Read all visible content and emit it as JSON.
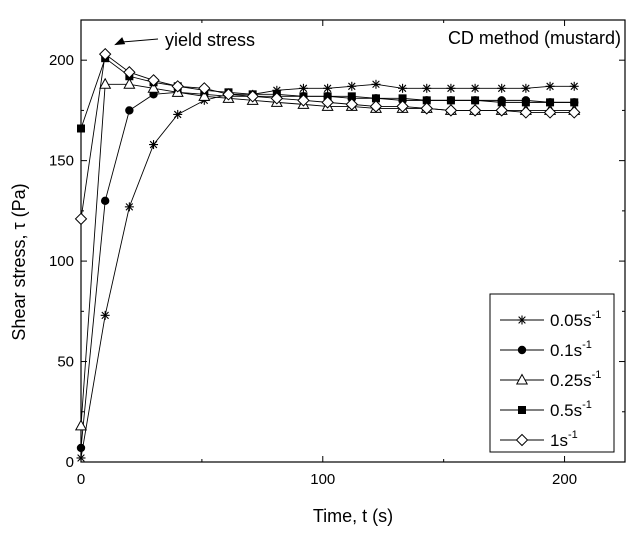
{
  "chart_data": {
    "type": "line",
    "title": "CD method (mustard)",
    "xlabel": "Time, t (s)",
    "ylabel": "Shear stress, τ (Pa)",
    "xlim": [
      0,
      225
    ],
    "ylim": [
      0,
      220
    ],
    "xticks": [
      0,
      100,
      200
    ],
    "yticks": [
      0,
      50,
      100,
      150,
      200
    ],
    "legend_position": "bottom-right",
    "annotation": {
      "text": "yield stress",
      "points_to": [
        10,
        203
      ]
    },
    "series": [
      {
        "name": "0.05s",
        "name_sup": "-1",
        "marker": "asterisk",
        "x": [
          0,
          10,
          20,
          30,
          40,
          51,
          61,
          71,
          81,
          92,
          102,
          112,
          122,
          133,
          143,
          153,
          163,
          174,
          184,
          194,
          204
        ],
        "y": [
          2,
          73,
          127,
          158,
          173,
          180,
          183,
          183,
          185,
          186,
          186,
          187,
          188,
          186,
          186,
          186,
          186,
          186,
          186,
          187,
          187
        ]
      },
      {
        "name": "0.1s",
        "name_sup": "-1",
        "marker": "circle",
        "x": [
          0,
          10,
          20,
          30,
          40,
          51,
          61,
          71,
          81,
          92,
          102,
          112,
          122,
          133,
          143,
          153,
          163,
          174,
          184,
          194,
          204
        ],
        "y": [
          7,
          130,
          175,
          183,
          184,
          183,
          182,
          182,
          182,
          182,
          182,
          181,
          181,
          180,
          180,
          180,
          180,
          180,
          180,
          179,
          179
        ]
      },
      {
        "name": "0.25s",
        "name_sup": "-1",
        "marker": "triangle",
        "x": [
          0,
          10,
          20,
          30,
          40,
          51,
          61,
          71,
          81,
          92,
          102,
          112,
          122,
          133,
          143,
          153,
          163,
          174,
          184,
          194,
          204
        ],
        "y": [
          18,
          188,
          188,
          186,
          184,
          182,
          181,
          180,
          179,
          178,
          177,
          177,
          176,
          176,
          176,
          175,
          175,
          175,
          175,
          175,
          175
        ]
      },
      {
        "name": "0.5s",
        "name_sup": "-1",
        "marker": "square",
        "x": [
          0,
          10,
          20,
          30,
          40,
          51,
          61,
          71,
          81,
          92,
          102,
          112,
          122,
          133,
          143,
          153,
          163,
          174,
          184,
          194,
          204
        ],
        "y": [
          166,
          201,
          192,
          189,
          187,
          185,
          184,
          183,
          183,
          182,
          182,
          182,
          181,
          181,
          180,
          180,
          180,
          179,
          179,
          179,
          179
        ]
      },
      {
        "name": "1s",
        "name_sup": "-1",
        "marker": "diamond",
        "x": [
          0,
          10,
          20,
          30,
          40,
          51,
          61,
          71,
          81,
          92,
          102,
          112,
          122,
          133,
          143,
          153,
          163,
          174,
          184,
          194,
          204
        ],
        "y": [
          121,
          203,
          194,
          190,
          187,
          186,
          183,
          182,
          181,
          180,
          179,
          178,
          177,
          177,
          176,
          175,
          175,
          175,
          174,
          174,
          174
        ]
      }
    ]
  }
}
